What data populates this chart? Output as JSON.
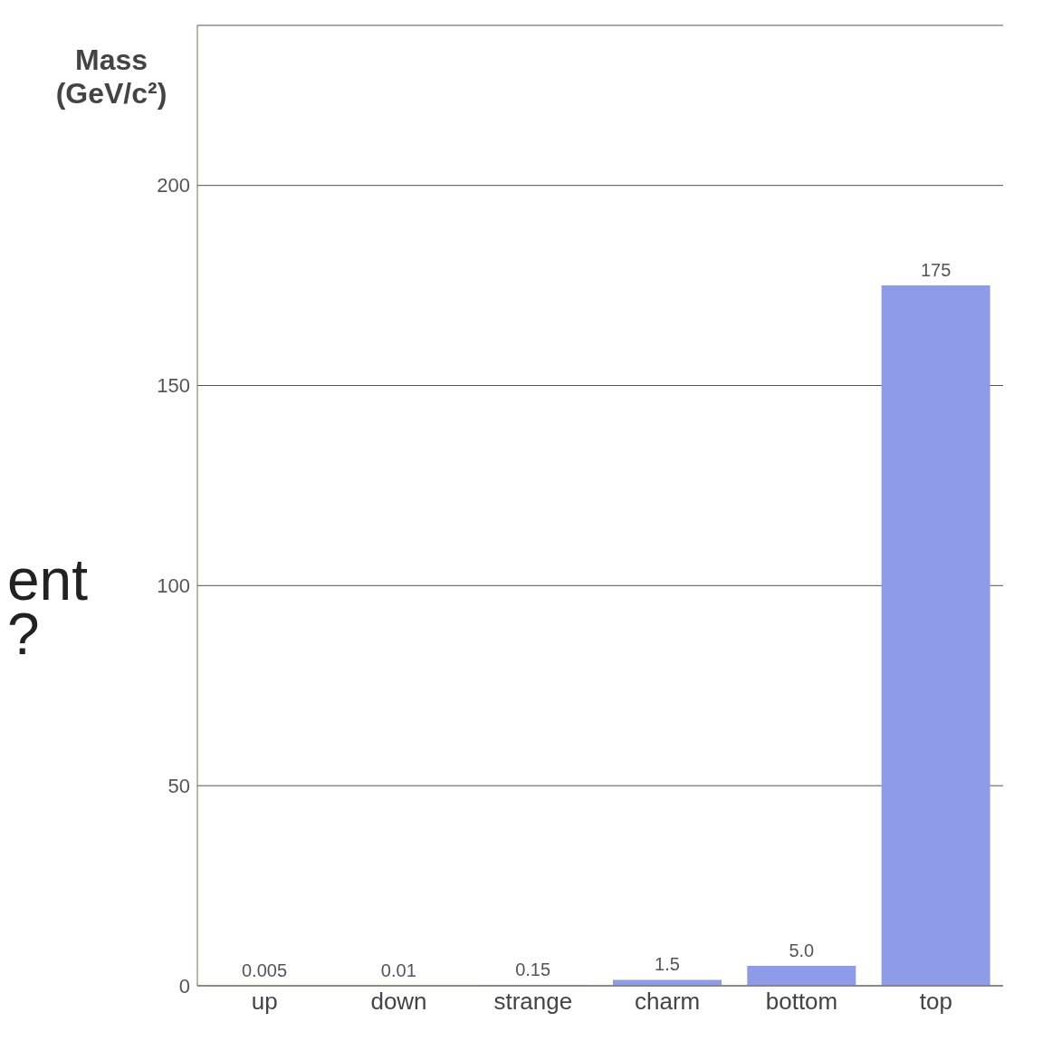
{
  "chart_data": {
    "type": "bar",
    "ylabel": "Mass (GeV/c²)",
    "categories": [
      "up",
      "down",
      "strange",
      "charm",
      "bottom",
      "top"
    ],
    "values": [
      0.005,
      0.01,
      0.15,
      1.5,
      5,
      175
    ],
    "value_labels": [
      "0.005",
      "0.01",
      "0.15",
      "1.5",
      "5.0",
      "175"
    ],
    "color": "#8e9be8",
    "ylim": [
      0,
      240
    ],
    "yticks": [
      0,
      50,
      100,
      150,
      200
    ],
    "grid": "y",
    "annotations": [
      "ent",
      "?"
    ]
  }
}
